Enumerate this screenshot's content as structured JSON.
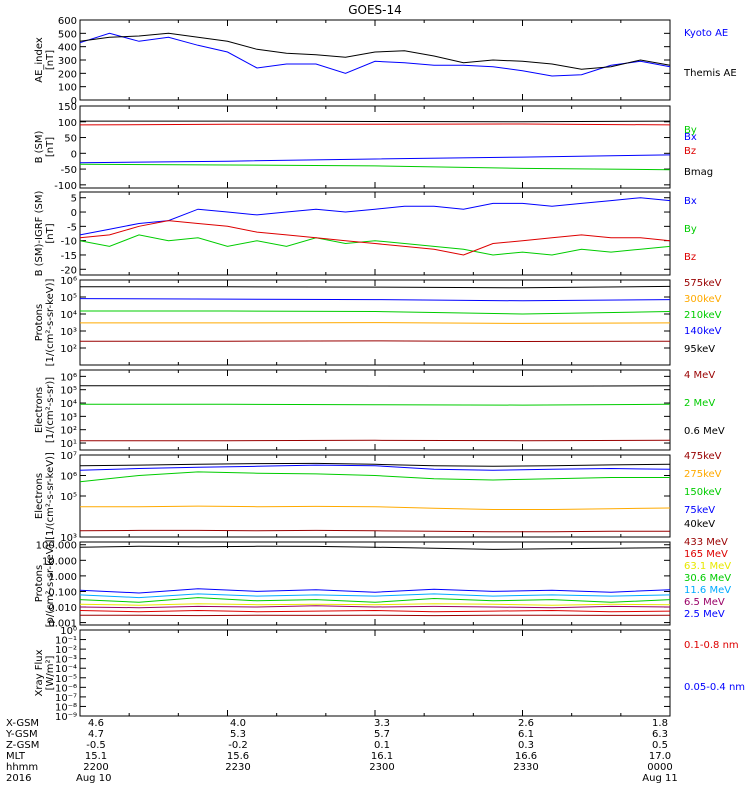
{
  "title": "GOES-14",
  "colors": {
    "black": "#000000",
    "blue": "#0000ff",
    "red": "#dd0000",
    "green": "#00cc00",
    "orange": "#ffaa00",
    "yellow": "#e8e800",
    "cyan": "#00aaff",
    "purple": "#990066",
    "darkred": "#990000"
  },
  "chart_data": [
    {
      "type": "line",
      "ylabel": "AE_index\n[nT]",
      "scale": "linear",
      "ylim": [
        0,
        600
      ],
      "yticks": [
        0,
        100,
        200,
        300,
        400,
        500,
        600
      ],
      "yticklabels": [
        "0",
        "100",
        "200",
        "300",
        "400",
        "500",
        "600"
      ],
      "x": [
        0,
        0.05,
        0.1,
        0.15,
        0.2,
        0.25,
        0.3,
        0.35,
        0.4,
        0.45,
        0.5,
        0.55,
        0.6,
        0.65,
        0.7,
        0.75,
        0.8,
        0.85,
        0.9,
        0.95,
        1.0
      ],
      "series": [
        {
          "name": "Kyoto AE",
          "color": "blue",
          "values": [
            430,
            500,
            440,
            470,
            410,
            360,
            240,
            270,
            270,
            200,
            290,
            280,
            260,
            260,
            250,
            220,
            180,
            190,
            260,
            290,
            250
          ]
        },
        {
          "name": "Themis AE",
          "color": "black",
          "values": [
            440,
            470,
            480,
            500,
            470,
            440,
            380,
            350,
            340,
            320,
            360,
            370,
            330,
            280,
            300,
            290,
            270,
            230,
            250,
            300,
            260
          ]
        }
      ]
    },
    {
      "type": "line",
      "ylabel": "B (SM)\n[nT]",
      "scale": "linear",
      "ylim": [
        -110,
        150
      ],
      "yticks": [
        -100,
        -50,
        0,
        50,
        100,
        150
      ],
      "yticklabels": [
        "-100",
        "-50",
        "0",
        "50",
        "100",
        "150"
      ],
      "x": [
        0,
        0.25,
        0.5,
        0.75,
        1.0
      ],
      "series": [
        {
          "name": "Bx",
          "color": "blue",
          "values": [
            -30,
            -25,
            -18,
            -12,
            -5
          ]
        },
        {
          "name": "By",
          "color": "green",
          "values": [
            -35,
            -37,
            -40,
            -48,
            -52
          ]
        },
        {
          "name": "Bz",
          "color": "red",
          "values": [
            90,
            92,
            92,
            93,
            90
          ]
        },
        {
          "name": "Bmag",
          "color": "black",
          "values": [
            102,
            102,
            101,
            100,
            102
          ]
        }
      ]
    },
    {
      "type": "line",
      "ylabel": "B (SM)-IGRF (SM)\n[nT]",
      "scale": "linear",
      "ylim": [
        -22,
        7
      ],
      "yticks": [
        -20,
        -15,
        -10,
        -5,
        0,
        5
      ],
      "yticklabels": [
        "-20",
        "-15",
        "-10",
        "-5",
        "0",
        "5"
      ],
      "x": [
        0,
        0.05,
        0.1,
        0.15,
        0.2,
        0.25,
        0.3,
        0.35,
        0.4,
        0.45,
        0.5,
        0.55,
        0.6,
        0.65,
        0.7,
        0.75,
        0.8,
        0.85,
        0.9,
        0.95,
        1.0
      ],
      "series": [
        {
          "name": "Bx",
          "color": "blue",
          "values": [
            -8,
            -6,
            -4,
            -3,
            1,
            0,
            -1,
            0,
            1,
            0,
            1,
            2,
            2,
            1,
            3,
            3,
            2,
            3,
            4,
            5,
            4
          ]
        },
        {
          "name": "By",
          "color": "green",
          "values": [
            -10,
            -12,
            -8,
            -10,
            -9,
            -12,
            -10,
            -12,
            -9,
            -11,
            -10,
            -11,
            -12,
            -13,
            -15,
            -14,
            -15,
            -13,
            -14,
            -13,
            -12
          ]
        },
        {
          "name": "Bz",
          "color": "red",
          "values": [
            -9,
            -8,
            -5,
            -3,
            -4,
            -5,
            -7,
            -8,
            -9,
            -10,
            -11,
            -12,
            -13,
            -15,
            -11,
            -10,
            -9,
            -8,
            -9,
            -9,
            -10
          ]
        }
      ]
    },
    {
      "type": "line",
      "ylabel": "Protons\n[1/(cm²-s-sr-keV)]",
      "scale": "log",
      "ylim": [
        10,
        1000000
      ],
      "yticks": [
        100,
        1000,
        10000,
        100000,
        1000000
      ],
      "yticklabels": [
        "10²",
        "10³",
        "10⁴",
        "10⁵",
        "10⁶"
      ],
      "x": [
        0,
        0.25,
        0.5,
        0.75,
        1.0
      ],
      "series": [
        {
          "name": "575keV",
          "color": "darkred",
          "values": [
            250,
            250,
            260,
            240,
            250
          ]
        },
        {
          "name": "300keV",
          "color": "orange",
          "values": [
            3000,
            3000,
            3100,
            2800,
            3000
          ]
        },
        {
          "name": "210keV",
          "color": "green",
          "values": [
            15000,
            15000,
            14000,
            10000,
            14000
          ]
        },
        {
          "name": "140keV",
          "color": "blue",
          "values": [
            80000,
            75000,
            70000,
            60000,
            70000
          ]
        },
        {
          "name": "95keV",
          "color": "black",
          "values": [
            400000,
            400000,
            380000,
            350000,
            420000
          ]
        }
      ]
    },
    {
      "type": "line",
      "ylabel": "Electrons\n[1/(cm²-s-sr)]",
      "scale": "log",
      "ylim": [
        3,
        3000000
      ],
      "yticks": [
        10,
        100,
        1000,
        10000,
        100000,
        1000000
      ],
      "yticklabels": [
        "10¹",
        "10²",
        "10³",
        "10⁴",
        "10⁵",
        "10⁶"
      ],
      "x": [
        0,
        0.25,
        0.5,
        0.75,
        1.0
      ],
      "series": [
        {
          "name": "4 MeV",
          "color": "darkred",
          "values": [
            15,
            15,
            16,
            15,
            16
          ]
        },
        {
          "name": "2 MeV",
          "color": "green",
          "values": [
            8000,
            8000,
            7500,
            7000,
            8000
          ]
        },
        {
          "name": "0.6 MeV",
          "color": "black",
          "values": [
            200000,
            200000,
            190000,
            180000,
            200000
          ]
        }
      ]
    },
    {
      "type": "line",
      "ylabel": "Electrons\n[1/(cm²-s-sr-keV)]",
      "scale": "log",
      "ylim": [
        1000,
        10000000
      ],
      "yticks": [
        1000,
        100000,
        1000000,
        10000000
      ],
      "yticklabels": [
        "10³",
        "10⁵",
        "10⁶",
        "10⁷"
      ],
      "x": [
        0,
        0.1,
        0.2,
        0.3,
        0.4,
        0.5,
        0.6,
        0.7,
        0.8,
        0.9,
        1.0
      ],
      "series": [
        {
          "name": "475keV",
          "color": "darkred",
          "values": [
            2000,
            2100,
            2100,
            2000,
            2100,
            2000,
            1900,
            1800,
            1800,
            1900,
            1900
          ]
        },
        {
          "name": "275keV",
          "color": "orange",
          "values": [
            30000,
            30000,
            32000,
            30000,
            31000,
            30000,
            25000,
            22000,
            22000,
            24000,
            26000
          ]
        },
        {
          "name": "150keV",
          "color": "green",
          "values": [
            500000,
            1000000,
            1500000,
            1300000,
            1200000,
            1000000,
            700000,
            600000,
            700000,
            800000,
            800000
          ]
        },
        {
          "name": "75keV",
          "color": "blue",
          "values": [
            1800000,
            2200000,
            2500000,
            2800000,
            3200000,
            3000000,
            2000000,
            1800000,
            2000000,
            2200000,
            2000000
          ]
        },
        {
          "name": "40keV",
          "color": "black",
          "values": [
            3000000,
            3200000,
            3500000,
            3800000,
            3900000,
            3500000,
            3000000,
            2800000,
            3000000,
            3300000,
            3500000
          ]
        }
      ]
    },
    {
      "type": "line",
      "ylabel": "Protons\n[p/(cm²-s-sr-keV)]",
      "scale": "log",
      "ylim": [
        0.0007,
        150
      ],
      "yticks": [
        0.001,
        0.01,
        0.1,
        1,
        10,
        100
      ],
      "yticklabels": [
        "0.001",
        "0.010",
        "0.100",
        "1.000",
        "10.000",
        "100.000"
      ],
      "x": [
        0,
        0.1,
        0.2,
        0.3,
        0.4,
        0.5,
        0.6,
        0.7,
        0.8,
        0.9,
        1.0
      ],
      "series": [
        {
          "name": "433 MeV",
          "color": "darkred",
          "values": [
            0.003,
            0.003,
            0.0028,
            0.003,
            0.0029,
            0.003,
            0.0028,
            0.003,
            0.003,
            0.0029,
            0.003
          ]
        },
        {
          "name": "165 MeV",
          "color": "red",
          "values": [
            0.006,
            0.005,
            0.006,
            0.005,
            0.0055,
            0.006,
            0.005,
            0.0055,
            0.006,
            0.005,
            0.0055
          ]
        },
        {
          "name": "63.1 MeV",
          "color": "yellow",
          "values": [
            0.015,
            0.013,
            0.016,
            0.014,
            0.015,
            0.014,
            0.016,
            0.015,
            0.013,
            0.015,
            0.014
          ]
        },
        {
          "name": "30.6 MeV",
          "color": "green",
          "values": [
            0.03,
            0.02,
            0.04,
            0.025,
            0.03,
            0.02,
            0.035,
            0.025,
            0.03,
            0.02,
            0.03
          ]
        },
        {
          "name": "11.6 MeV",
          "color": "cyan",
          "values": [
            0.06,
            0.04,
            0.07,
            0.05,
            0.06,
            0.05,
            0.07,
            0.05,
            0.06,
            0.05,
            0.06
          ]
        },
        {
          "name": "6.5 MeV",
          "color": "purple",
          "values": [
            0.01,
            0.009,
            0.011,
            0.01,
            0.012,
            0.01,
            0.011,
            0.01,
            0.009,
            0.011,
            0.01
          ]
        },
        {
          "name": "2.5 MeV",
          "color": "blue",
          "values": [
            0.12,
            0.08,
            0.15,
            0.1,
            0.13,
            0.09,
            0.14,
            0.1,
            0.12,
            0.09,
            0.13
          ]
        },
        {
          "name": "",
          "color": "black",
          "values": [
            70,
            80,
            75,
            80,
            78,
            70,
            60,
            50,
            55,
            60,
            65
          ]
        }
      ]
    },
    {
      "type": "line",
      "ylabel": "Xray Flux\n[W/m²]",
      "scale": "log",
      "ylim": [
        1e-09,
        1
      ],
      "yticks": [
        1e-09,
        1e-08,
        1e-07,
        1e-06,
        1e-05,
        0.0001,
        0.001,
        0.01,
        0.1,
        1
      ],
      "yticklabels": [
        "10⁻⁹",
        "10⁻⁸",
        "10⁻⁷",
        "10⁻⁶",
        "10⁻⁵",
        "10⁻⁴",
        "10⁻³",
        "10⁻²",
        "10⁻¹",
        "10⁰"
      ],
      "x": [],
      "series": [
        {
          "name": "0.1-0.8 nm",
          "color": "red",
          "values": []
        },
        {
          "name": "0.05-0.4 nm",
          "color": "blue",
          "values": []
        }
      ]
    }
  ],
  "xaxis": {
    "row_labels": [
      "X-GSM",
      "Y-GSM",
      "Z-GSM",
      "MLT",
      "hhmm",
      "2016"
    ],
    "columns": [
      {
        "values": [
          "4.6",
          "4.7",
          "-0.5",
          "15.1",
          "2200",
          "Aug 10"
        ]
      },
      {
        "values": [
          "4.0",
          "5.3",
          "-0.2",
          "15.6",
          "2230",
          ""
        ]
      },
      {
        "values": [
          "3.3",
          "5.7",
          "0.1",
          "16.1",
          "2300",
          ""
        ]
      },
      {
        "values": [
          "2.6",
          "6.1",
          "0.3",
          "16.6",
          "2330",
          ""
        ]
      },
      {
        "values": [
          "1.8",
          "6.3",
          "0.5",
          "17.0",
          "0000",
          "Aug 11"
        ]
      }
    ]
  }
}
